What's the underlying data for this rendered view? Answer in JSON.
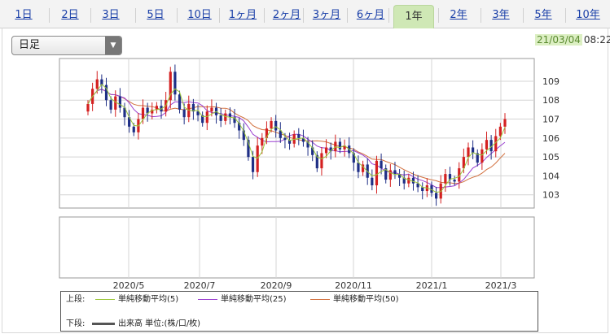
{
  "tabs": [
    {
      "label": "1日",
      "active": false
    },
    {
      "label": "2日",
      "active": false
    },
    {
      "label": "3日",
      "active": false
    },
    {
      "label": "5日",
      "active": false
    },
    {
      "label": "10日",
      "active": false
    },
    {
      "label": "1ヶ月",
      "active": false
    },
    {
      "label": "2ヶ月",
      "active": false
    },
    {
      "label": "3ヶ月",
      "active": false
    },
    {
      "label": "6ヶ月",
      "active": false
    },
    {
      "label": "1年",
      "active": true
    },
    {
      "label": "2年",
      "active": false
    },
    {
      "label": "3年",
      "active": false
    },
    {
      "label": "5年",
      "active": false
    },
    {
      "label": "10年",
      "active": false
    }
  ],
  "period_select": {
    "value": "日足"
  },
  "timestamp": {
    "date": "21/03/04",
    "time": "08:22"
  },
  "colors": {
    "up": "#d42020",
    "down": "#1f2f86",
    "ma5": "#9bc63a",
    "ma25": "#9a3fd0",
    "ma50": "#d2703e",
    "active_tab": "#cfe8b5"
  },
  "legend": {
    "upper_label": "上段:",
    "lower_label": "下段:",
    "ma5": "単純移動平均(5)",
    "ma25": "単純移動平均(25)",
    "ma50": "単純移動平均(50)",
    "volume": "出来高 単位:(株/口/枚)"
  },
  "chart_data": {
    "type": "candlestick",
    "x_labels": [
      "2020/5",
      "2020/7",
      "2020/9",
      "2020/11",
      "2021/1",
      "2021/3"
    ],
    "y_ticks": [
      109,
      108,
      107,
      106,
      105,
      104,
      103
    ],
    "ylim": [
      102.3,
      110.2
    ],
    "series_close": [
      107.8,
      108.6,
      109.1,
      108.8,
      108.0,
      107.5,
      108.2,
      107.6,
      107.1,
      106.6,
      106.3,
      107.0,
      107.6,
      107.3,
      107.5,
      107.7,
      107.4,
      108.0,
      109.5,
      108.3,
      107.5,
      107.1,
      107.8,
      107.4,
      107.2,
      106.8,
      107.4,
      107.6,
      107.2,
      106.9,
      107.3,
      107.1,
      106.8,
      106.4,
      105.9,
      105.0,
      104.2,
      105.6,
      106.0,
      106.5,
      106.9,
      106.4,
      106.0,
      105.9,
      105.7,
      106.2,
      106.0,
      105.8,
      105.5,
      105.1,
      104.4,
      105.2,
      105.5,
      105.3,
      105.8,
      105.4,
      105.6,
      105.2,
      104.7,
      104.2,
      104.6,
      103.9,
      103.5,
      104.8,
      104.4,
      103.8,
      104.3,
      104.1,
      103.9,
      103.6,
      103.9,
      103.6,
      103.4,
      103.2,
      103.5,
      103.1,
      102.8,
      103.6,
      104.1,
      103.8,
      103.7,
      104.4,
      105.0,
      105.5,
      105.2,
      104.7,
      105.4,
      105.9,
      105.3,
      106.1,
      106.6,
      107.0
    ],
    "ma25_end": 105.6,
    "ma50_end": 104.6
  }
}
